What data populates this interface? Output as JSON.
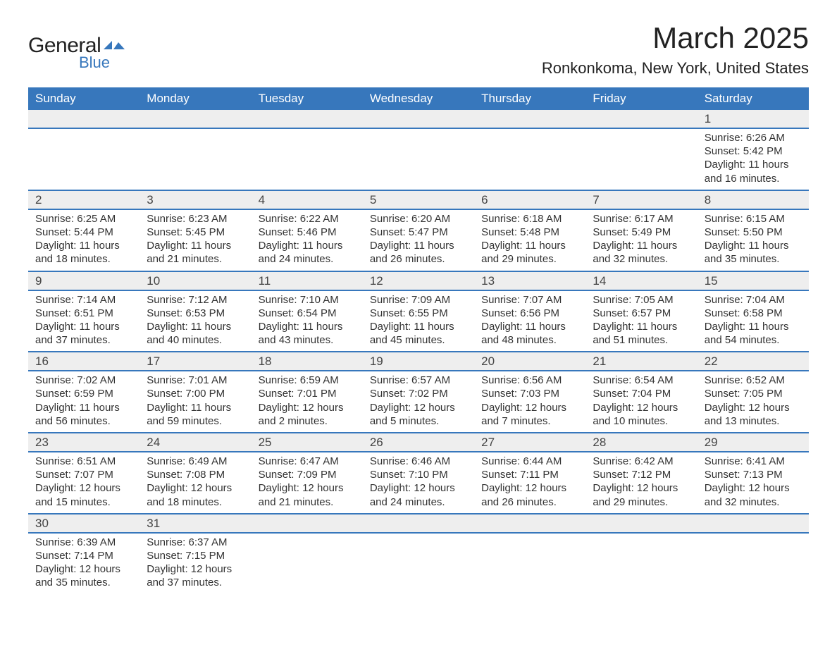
{
  "brand": {
    "name_part1": "General",
    "name_part2": "Blue",
    "accent_color": "#3777bc"
  },
  "title": "March 2025",
  "location": "Ronkonkoma, New York, United States",
  "weekdays": [
    "Sunday",
    "Monday",
    "Tuesday",
    "Wednesday",
    "Thursday",
    "Friday",
    "Saturday"
  ],
  "colors": {
    "header_bg": "#3777bc",
    "header_text": "#ffffff",
    "daynum_bg": "#eeeeee",
    "row_border": "#3777bc",
    "body_text": "#333333",
    "page_bg": "#ffffff"
  },
  "typography": {
    "title_fontsize": 42,
    "subtitle_fontsize": 22,
    "weekday_fontsize": 17,
    "daynum_fontsize": 17,
    "detail_fontsize": 15
  },
  "weeks": [
    [
      null,
      null,
      null,
      null,
      null,
      null,
      {
        "day": "1",
        "sunrise": "Sunrise: 6:26 AM",
        "sunset": "Sunset: 5:42 PM",
        "daylight": "Daylight: 11 hours and 16 minutes."
      }
    ],
    [
      {
        "day": "2",
        "sunrise": "Sunrise: 6:25 AM",
        "sunset": "Sunset: 5:44 PM",
        "daylight": "Daylight: 11 hours and 18 minutes."
      },
      {
        "day": "3",
        "sunrise": "Sunrise: 6:23 AM",
        "sunset": "Sunset: 5:45 PM",
        "daylight": "Daylight: 11 hours and 21 minutes."
      },
      {
        "day": "4",
        "sunrise": "Sunrise: 6:22 AM",
        "sunset": "Sunset: 5:46 PM",
        "daylight": "Daylight: 11 hours and 24 minutes."
      },
      {
        "day": "5",
        "sunrise": "Sunrise: 6:20 AM",
        "sunset": "Sunset: 5:47 PM",
        "daylight": "Daylight: 11 hours and 26 minutes."
      },
      {
        "day": "6",
        "sunrise": "Sunrise: 6:18 AM",
        "sunset": "Sunset: 5:48 PM",
        "daylight": "Daylight: 11 hours and 29 minutes."
      },
      {
        "day": "7",
        "sunrise": "Sunrise: 6:17 AM",
        "sunset": "Sunset: 5:49 PM",
        "daylight": "Daylight: 11 hours and 32 minutes."
      },
      {
        "day": "8",
        "sunrise": "Sunrise: 6:15 AM",
        "sunset": "Sunset: 5:50 PM",
        "daylight": "Daylight: 11 hours and 35 minutes."
      }
    ],
    [
      {
        "day": "9",
        "sunrise": "Sunrise: 7:14 AM",
        "sunset": "Sunset: 6:51 PM",
        "daylight": "Daylight: 11 hours and 37 minutes."
      },
      {
        "day": "10",
        "sunrise": "Sunrise: 7:12 AM",
        "sunset": "Sunset: 6:53 PM",
        "daylight": "Daylight: 11 hours and 40 minutes."
      },
      {
        "day": "11",
        "sunrise": "Sunrise: 7:10 AM",
        "sunset": "Sunset: 6:54 PM",
        "daylight": "Daylight: 11 hours and 43 minutes."
      },
      {
        "day": "12",
        "sunrise": "Sunrise: 7:09 AM",
        "sunset": "Sunset: 6:55 PM",
        "daylight": "Daylight: 11 hours and 45 minutes."
      },
      {
        "day": "13",
        "sunrise": "Sunrise: 7:07 AM",
        "sunset": "Sunset: 6:56 PM",
        "daylight": "Daylight: 11 hours and 48 minutes."
      },
      {
        "day": "14",
        "sunrise": "Sunrise: 7:05 AM",
        "sunset": "Sunset: 6:57 PM",
        "daylight": "Daylight: 11 hours and 51 minutes."
      },
      {
        "day": "15",
        "sunrise": "Sunrise: 7:04 AM",
        "sunset": "Sunset: 6:58 PM",
        "daylight": "Daylight: 11 hours and 54 minutes."
      }
    ],
    [
      {
        "day": "16",
        "sunrise": "Sunrise: 7:02 AM",
        "sunset": "Sunset: 6:59 PM",
        "daylight": "Daylight: 11 hours and 56 minutes."
      },
      {
        "day": "17",
        "sunrise": "Sunrise: 7:01 AM",
        "sunset": "Sunset: 7:00 PM",
        "daylight": "Daylight: 11 hours and 59 minutes."
      },
      {
        "day": "18",
        "sunrise": "Sunrise: 6:59 AM",
        "sunset": "Sunset: 7:01 PM",
        "daylight": "Daylight: 12 hours and 2 minutes."
      },
      {
        "day": "19",
        "sunrise": "Sunrise: 6:57 AM",
        "sunset": "Sunset: 7:02 PM",
        "daylight": "Daylight: 12 hours and 5 minutes."
      },
      {
        "day": "20",
        "sunrise": "Sunrise: 6:56 AM",
        "sunset": "Sunset: 7:03 PM",
        "daylight": "Daylight: 12 hours and 7 minutes."
      },
      {
        "day": "21",
        "sunrise": "Sunrise: 6:54 AM",
        "sunset": "Sunset: 7:04 PM",
        "daylight": "Daylight: 12 hours and 10 minutes."
      },
      {
        "day": "22",
        "sunrise": "Sunrise: 6:52 AM",
        "sunset": "Sunset: 7:05 PM",
        "daylight": "Daylight: 12 hours and 13 minutes."
      }
    ],
    [
      {
        "day": "23",
        "sunrise": "Sunrise: 6:51 AM",
        "sunset": "Sunset: 7:07 PM",
        "daylight": "Daylight: 12 hours and 15 minutes."
      },
      {
        "day": "24",
        "sunrise": "Sunrise: 6:49 AM",
        "sunset": "Sunset: 7:08 PM",
        "daylight": "Daylight: 12 hours and 18 minutes."
      },
      {
        "day": "25",
        "sunrise": "Sunrise: 6:47 AM",
        "sunset": "Sunset: 7:09 PM",
        "daylight": "Daylight: 12 hours and 21 minutes."
      },
      {
        "day": "26",
        "sunrise": "Sunrise: 6:46 AM",
        "sunset": "Sunset: 7:10 PM",
        "daylight": "Daylight: 12 hours and 24 minutes."
      },
      {
        "day": "27",
        "sunrise": "Sunrise: 6:44 AM",
        "sunset": "Sunset: 7:11 PM",
        "daylight": "Daylight: 12 hours and 26 minutes."
      },
      {
        "day": "28",
        "sunrise": "Sunrise: 6:42 AM",
        "sunset": "Sunset: 7:12 PM",
        "daylight": "Daylight: 12 hours and 29 minutes."
      },
      {
        "day": "29",
        "sunrise": "Sunrise: 6:41 AM",
        "sunset": "Sunset: 7:13 PM",
        "daylight": "Daylight: 12 hours and 32 minutes."
      }
    ],
    [
      {
        "day": "30",
        "sunrise": "Sunrise: 6:39 AM",
        "sunset": "Sunset: 7:14 PM",
        "daylight": "Daylight: 12 hours and 35 minutes."
      },
      {
        "day": "31",
        "sunrise": "Sunrise: 6:37 AM",
        "sunset": "Sunset: 7:15 PM",
        "daylight": "Daylight: 12 hours and 37 minutes."
      },
      null,
      null,
      null,
      null,
      null
    ]
  ]
}
